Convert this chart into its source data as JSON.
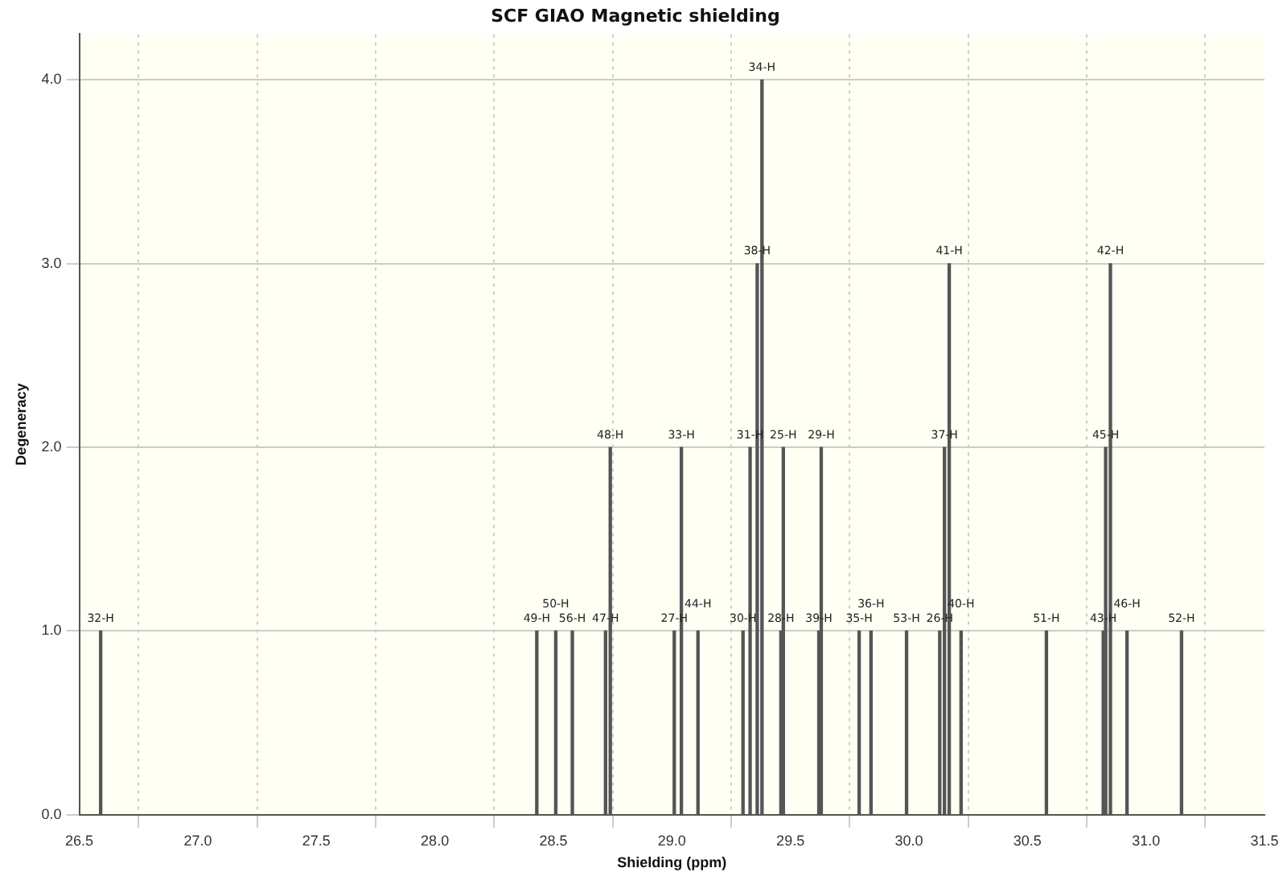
{
  "chart_data": {
    "type": "bar",
    "title": "SCF GIAO Magnetic shielding",
    "xlabel": "Shielding (ppm)",
    "ylabel": "Degeneracy",
    "x": [
      26.59,
      28.43,
      28.51,
      28.58,
      28.72,
      28.74,
      29.01,
      29.04,
      29.11,
      29.3,
      29.33,
      29.36,
      29.38,
      29.46,
      29.47,
      29.62,
      29.63,
      29.79,
      29.84,
      29.99,
      30.13,
      30.15,
      30.17,
      30.22,
      30.58,
      30.82,
      30.83,
      30.85,
      30.92,
      31.15
    ],
    "values": [
      1,
      1,
      1,
      1,
      1,
      2,
      1,
      2,
      1,
      1,
      2,
      3,
      4,
      1,
      2,
      1,
      2,
      1,
      1,
      1,
      1,
      2,
      3,
      1,
      1,
      1,
      2,
      3,
      1,
      1
    ],
    "color": "#555555",
    "xlim": [
      26.5,
      31.5
    ],
    "xticks": [
      26.5,
      {
        "value": 27,
        "label": "27.0"
      },
      27.5,
      {
        "value": 28,
        "label": "28.0"
      },
      28.5,
      {
        "value": 29,
        "label": "29.0"
      },
      29.5,
      {
        "value": 30,
        "label": "30.0"
      },
      30.5,
      {
        "value": 31,
        "label": "31.0"
      },
      31.5
    ],
    "ylim": [
      0,
      4.25
    ],
    "yticks": [
      {
        "value": 0,
        "label": "0.0"
      },
      {
        "value": 1,
        "label": "1.0"
      },
      {
        "value": 2,
        "label": "2.0"
      },
      {
        "value": 3,
        "label": "3.0"
      },
      {
        "value": 4,
        "label": "4.0"
      }
    ],
    "grid": true,
    "annotations": [
      {
        "text": "32-H",
        "x": 26.59,
        "y": 1
      },
      {
        "text": "49-H",
        "x": 28.43,
        "y": 1
      },
      {
        "text": "50-H",
        "x": 28.51,
        "y": 1
      },
      {
        "text": "56-H",
        "x": 28.58,
        "y": 1
      },
      {
        "text": "47-H",
        "x": 28.72,
        "y": 1
      },
      {
        "text": "48-H",
        "x": 28.74,
        "y": 2
      },
      {
        "text": "27-H",
        "x": 29.01,
        "y": 1
      },
      {
        "text": "33-H",
        "x": 29.04,
        "y": 2
      },
      {
        "text": "44-H",
        "x": 29.11,
        "y": 1
      },
      {
        "text": "30-H",
        "x": 29.3,
        "y": 1
      },
      {
        "text": "31-H",
        "x": 29.33,
        "y": 2
      },
      {
        "text": "38-H",
        "x": 29.36,
        "y": 3
      },
      {
        "text": "34-H",
        "x": 29.38,
        "y": 4
      },
      {
        "text": "28-H",
        "x": 29.46,
        "y": 1
      },
      {
        "text": "25-H",
        "x": 29.47,
        "y": 2
      },
      {
        "text": "39-H",
        "x": 29.62,
        "y": 1
      },
      {
        "text": "29-H",
        "x": 29.63,
        "y": 2
      },
      {
        "text": "35-H",
        "x": 29.79,
        "y": 1
      },
      {
        "text": "36-H",
        "x": 29.84,
        "y": 1
      },
      {
        "text": "53-H",
        "x": 29.99,
        "y": 1
      },
      {
        "text": "26-H",
        "x": 30.13,
        "y": 1
      },
      {
        "text": "37-H",
        "x": 30.15,
        "y": 2
      },
      {
        "text": "41-H",
        "x": 30.17,
        "y": 3
      },
      {
        "text": "40-H",
        "x": 30.22,
        "y": 1
      },
      {
        "text": "51-H",
        "x": 30.58,
        "y": 1
      },
      {
        "text": "43-H",
        "x": 30.82,
        "y": 1
      },
      {
        "text": "45-H",
        "x": 30.83,
        "y": 2
      },
      {
        "text": "42-H",
        "x": 30.85,
        "y": 3
      },
      {
        "text": "46-H",
        "x": 30.92,
        "y": 1
      },
      {
        "text": "52-H",
        "x": 31.15,
        "y": 1
      }
    ]
  }
}
